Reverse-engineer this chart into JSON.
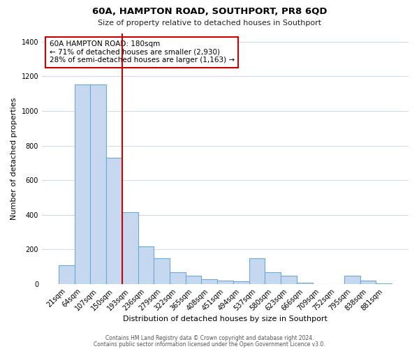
{
  "title": "60A, HAMPTON ROAD, SOUTHPORT, PR8 6QD",
  "subtitle": "Size of property relative to detached houses in Southport",
  "xlabel": "Distribution of detached houses by size in Southport",
  "ylabel": "Number of detached properties",
  "bins": [
    "21sqm",
    "64sqm",
    "107sqm",
    "150sqm",
    "193sqm",
    "236sqm",
    "279sqm",
    "322sqm",
    "365sqm",
    "408sqm",
    "451sqm",
    "494sqm",
    "537sqm",
    "580sqm",
    "623sqm",
    "666sqm",
    "709sqm",
    "752sqm",
    "795sqm",
    "838sqm",
    "881sqm"
  ],
  "values": [
    110,
    1155,
    1155,
    730,
    415,
    220,
    150,
    70,
    50,
    30,
    20,
    15,
    150,
    70,
    50,
    10,
    0,
    0,
    50,
    20,
    5
  ],
  "bar_color": "#c5d8f0",
  "bar_edge_color": "#6aaad4",
  "vline_color": "#cc0000",
  "vline_position": 3.5,
  "annotation_text": "60A HAMPTON ROAD: 180sqm\n← 71% of detached houses are smaller (2,930)\n28% of semi-detached houses are larger (1,163) →",
  "annotation_box_edge_color": "#cc0000",
  "annotation_box_face_color": "#ffffff",
  "ylim": [
    0,
    1450
  ],
  "yticks": [
    0,
    200,
    400,
    600,
    800,
    1000,
    1200,
    1400
  ],
  "footer1": "Contains HM Land Registry data © Crown copyright and database right 2024.",
  "footer2": "Contains public sector information licensed under the Open Government Licence v3.0.",
  "background_color": "#ffffff",
  "grid_color": "#cdd9e8",
  "title_fontsize": 9.5,
  "subtitle_fontsize": 8,
  "axis_label_fontsize": 8,
  "tick_fontsize": 7,
  "footer_fontsize": 5.5,
  "annotation_fontsize": 7.5
}
